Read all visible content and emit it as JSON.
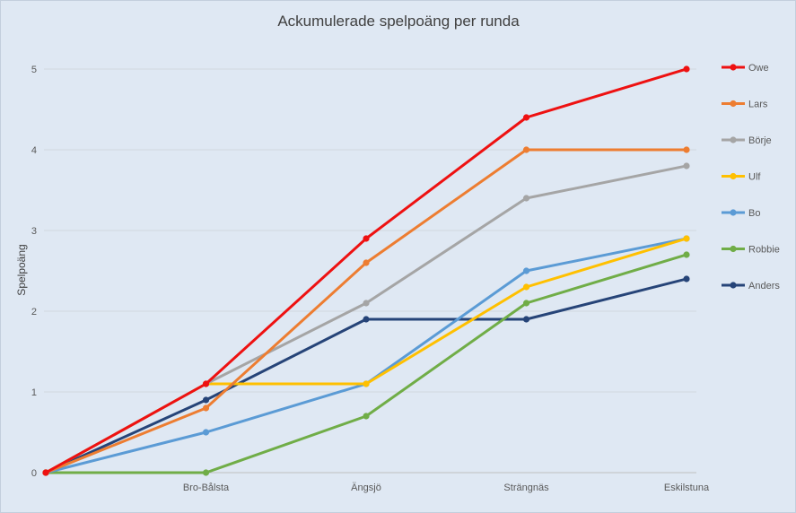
{
  "chart_data": {
    "type": "line",
    "title": "Ackumulerade spelpoäng per runda",
    "xlabel": "",
    "ylabel": "Spelpoäng",
    "x": [
      "",
      "Bro-Bålsta",
      "Ängsjö",
      "Strängnäs",
      "Eskilstuna"
    ],
    "ylim": [
      0,
      5
    ],
    "yticks": [
      0,
      1,
      2,
      3,
      4,
      5
    ],
    "grid": true,
    "legend": "right",
    "series": [
      {
        "name": "Owe",
        "color": "#ee1111",
        "values": [
          0,
          1.1,
          2.9,
          4.4,
          5.0
        ]
      },
      {
        "name": "Lars",
        "color": "#ed7d31",
        "values": [
          0,
          0.8,
          2.6,
          4.0,
          4.0
        ]
      },
      {
        "name": "Börje",
        "color": "#a5a5a5",
        "values": [
          0,
          1.1,
          2.1,
          3.4,
          3.8
        ]
      },
      {
        "name": "Ulf",
        "color": "#ffc000",
        "values": [
          0,
          1.1,
          1.1,
          2.3,
          2.9
        ]
      },
      {
        "name": "Bo",
        "color": "#5b9bd5",
        "values": [
          0,
          0.5,
          1.1,
          2.5,
          2.9
        ]
      },
      {
        "name": "Robbie",
        "color": "#70ad47",
        "values": [
          0,
          0.0,
          0.7,
          2.1,
          2.7
        ]
      },
      {
        "name": "Anders",
        "color": "#264478",
        "values": [
          0,
          0.9,
          1.9,
          1.9,
          2.4
        ]
      }
    ]
  }
}
